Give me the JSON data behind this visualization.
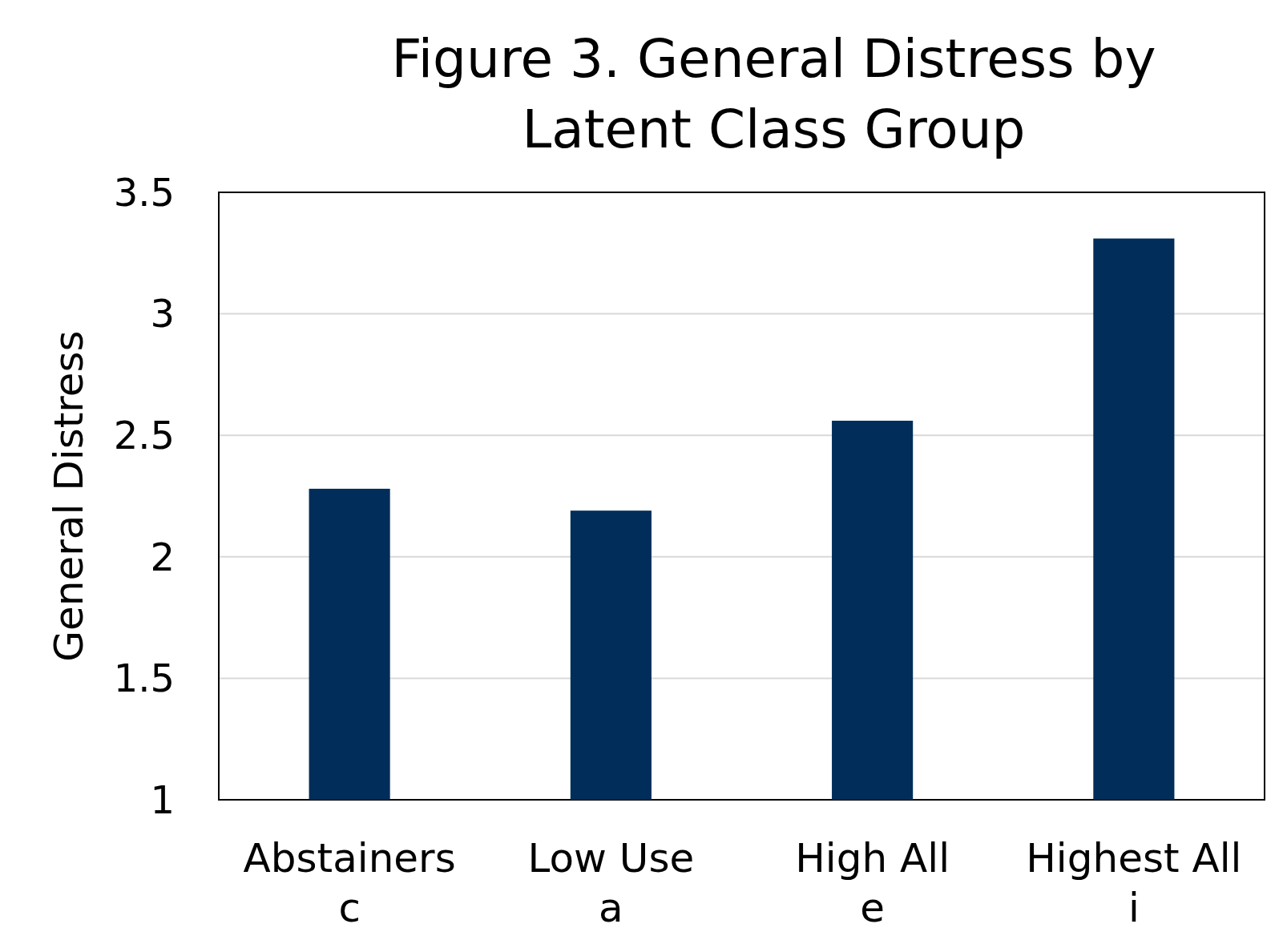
{
  "chart_data": {
    "type": "bar",
    "title": "Figure 3. General Distress by Latent Class Group",
    "ylabel": "General Distress",
    "categories": [
      "Abstainers\nc",
      "Low Use\na",
      "High All\ne",
      "Highest All\ni"
    ],
    "values": [
      2.28,
      2.19,
      2.56,
      3.31
    ],
    "color": "#002d5a",
    "ylim": [
      1,
      3.5
    ],
    "yticks": [
      1,
      1.5,
      2,
      2.5,
      3,
      3.5
    ],
    "grid": "y"
  }
}
